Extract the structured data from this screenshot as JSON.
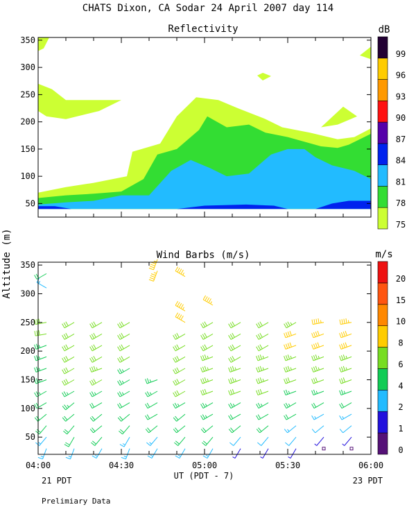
{
  "title": "CHATS Dixon, CA  Sodar  24 April 2007  day 114",
  "y_axis_label": "Altitude (m)",
  "x_axis_label": "UT  (PDT - 7)",
  "left_footer": "21 PDT",
  "right_footer": "23 PDT",
  "footnote": "Prelimiary Data",
  "x_ticks": [
    "04:00",
    "04:30",
    "05:00",
    "05:30",
    "06:00"
  ],
  "y_ticks": [
    "50",
    "100",
    "150",
    "200",
    "250",
    "300",
    "350"
  ],
  "chart_data": [
    {
      "type": "heatmap",
      "title": "Reflectivity",
      "xlim": [
        "04:00",
        "06:00"
      ],
      "ylim": [
        25,
        355
      ],
      "colorbar": {
        "unit": "dB",
        "levels": [
          "75",
          "78",
          "81",
          "84",
          "87",
          "90",
          "93",
          "96",
          "99"
        ],
        "colors": [
          "#ccff33",
          "#33dd33",
          "#22bbff",
          "#0022ee",
          "#5500aa",
          "#ff1111",
          "#ff9900",
          "#ffcc00",
          "#220033"
        ]
      },
      "contours": [
        {
          "level": "75",
          "color": "#ccff33",
          "points": [
            [
              "04:00",
              70
            ],
            [
              "04:10",
              80
            ],
            [
              "04:20",
              88
            ],
            [
              "04:32",
              100
            ],
            [
              "04:34",
              145
            ],
            [
              "04:44",
              160
            ],
            [
              "04:50",
              210
            ],
            [
              "04:57",
              245
            ],
            [
              "05:05",
              240
            ],
            [
              "05:12",
              225
            ],
            [
              "05:22",
              205
            ],
            [
              "05:28",
              190
            ],
            [
              "05:38",
              180
            ],
            [
              "05:48",
              168
            ],
            [
              "05:54",
              172
            ],
            [
              "06:00",
              188
            ],
            [
              "06:00",
              40
            ],
            [
              "04:00",
              40
            ]
          ]
        },
        {
          "level": "75",
          "color": "#ccff33",
          "points": [
            [
              "04:00",
              270
            ],
            [
              "04:05",
              260
            ],
            [
              "04:10",
              240
            ],
            [
              "04:20",
              240
            ],
            [
              "04:30",
              240
            ],
            [
              "04:22",
              220
            ],
            [
              "04:10",
              205
            ],
            [
              "04:03",
              210
            ],
            [
              "04:00",
              220
            ]
          ]
        },
        {
          "level": "75",
          "color": "#ccff33",
          "points": [
            [
              "04:00",
              330
            ],
            [
              "04:00",
              355
            ],
            [
              "04:04",
              355
            ],
            [
              "04:02",
              335
            ]
          ]
        },
        {
          "level": "75",
          "color": "#ccff33",
          "points": [
            [
              "05:42",
              190
            ],
            [
              "05:50",
              228
            ],
            [
              "05:55",
              210
            ],
            [
              "05:48",
              195
            ]
          ]
        },
        {
          "level": "75",
          "color": "#ccff33",
          "points": [
            [
              "05:19",
              285
            ],
            [
              "05:21",
              290
            ],
            [
              "05:24",
              284
            ],
            [
              "05:21",
              276
            ]
          ]
        },
        {
          "level": "75",
          "color": "#ccff33",
          "points": [
            [
              "05:58",
              330
            ],
            [
              "06:00",
              338
            ],
            [
              "06:00",
              315
            ],
            [
              "05:56",
              322
            ]
          ]
        },
        {
          "level": "78",
          "color": "#33dd33",
          "points": [
            [
              "04:00",
              60
            ],
            [
              "04:10",
              65
            ],
            [
              "04:20",
              68
            ],
            [
              "04:30",
              72
            ],
            [
              "04:38",
              95
            ],
            [
              "04:43",
              140
            ],
            [
              "04:50",
              150
            ],
            [
              "04:58",
              185
            ],
            [
              "05:01",
              210
            ],
            [
              "05:08",
              190
            ],
            [
              "05:16",
              195
            ],
            [
              "05:22",
              180
            ],
            [
              "05:30",
              172
            ],
            [
              "05:42",
              155
            ],
            [
              "05:48",
              152
            ],
            [
              "05:52",
              158
            ],
            [
              "06:00",
              178
            ],
            [
              "06:00",
              40
            ],
            [
              "04:00",
              40
            ]
          ]
        },
        {
          "level": "81",
          "color": "#22bbff",
          "points": [
            [
              "04:00",
              48
            ],
            [
              "04:10",
              52
            ],
            [
              "04:20",
              55
            ],
            [
              "04:30",
              65
            ],
            [
              "04:40",
              65
            ],
            [
              "04:48",
              110
            ],
            [
              "04:55",
              130
            ],
            [
              "05:02",
              115
            ],
            [
              "05:08",
              100
            ],
            [
              "05:16",
              105
            ],
            [
              "05:24",
              140
            ],
            [
              "05:30",
              150
            ],
            [
              "05:36",
              150
            ],
            [
              "05:40",
              135
            ],
            [
              "05:46",
              120
            ],
            [
              "05:54",
              110
            ],
            [
              "06:00",
              95
            ],
            [
              "06:00",
              40
            ],
            [
              "04:00",
              40
            ]
          ]
        },
        {
          "level": "84",
          "color": "#0022ee",
          "points": [
            [
              "04:00",
              40
            ],
            [
              "04:00",
              45
            ],
            [
              "04:06",
              45
            ],
            [
              "04:12",
              40
            ]
          ]
        },
        {
          "level": "84",
          "color": "#0022ee",
          "points": [
            [
              "04:50",
              40
            ],
            [
              "05:00",
              46
            ],
            [
              "05:15",
              48
            ],
            [
              "05:25",
              46
            ],
            [
              "05:30",
              40
            ]
          ]
        },
        {
          "level": "84",
          "color": "#0022ee",
          "points": [
            [
              "05:40",
              40
            ],
            [
              "05:46",
              50
            ],
            [
              "05:52",
              55
            ],
            [
              "06:00",
              55
            ],
            [
              "06:00",
              40
            ]
          ]
        }
      ]
    },
    {
      "type": "scatter",
      "title": "Wind Barbs (m/s)",
      "xlim": [
        "04:00",
        "06:00"
      ],
      "ylim": [
        20,
        355
      ],
      "colorbar": {
        "unit": "m/s",
        "levels": [
          "0",
          "1",
          "2",
          "4",
          "6",
          "8",
          "10",
          "15",
          "20"
        ],
        "colors": [
          "#551177",
          "#2211dd",
          "#22bbff",
          "#11cc55",
          "#77dd22",
          "#ffcc00",
          "#ff8800",
          "#ff5511",
          "#ee1111"
        ]
      },
      "times": [
        "04:03",
        "04:13",
        "04:23",
        "04:33",
        "04:43",
        "04:53",
        "05:03",
        "05:13",
        "05:23",
        "05:33",
        "05:43",
        "05:53"
      ],
      "heights": [
        30,
        50,
        70,
        90,
        110,
        130,
        150,
        170,
        190,
        210,
        230,
        250
      ],
      "barbs": [
        {
          "time": "04:03",
          "heights": [
            30,
            50,
            70,
            90,
            110,
            130,
            150,
            170,
            190,
            210,
            230,
            250,
            310,
            335
          ],
          "speeds": [
            3,
            3,
            4,
            4,
            4,
            5,
            5,
            5,
            5,
            5,
            6,
            6,
            3,
            4
          ],
          "directions": [
            200,
            220,
            220,
            230,
            240,
            240,
            250,
            250,
            250,
            250,
            260,
            260,
            300,
            240
          ]
        },
        {
          "time": "04:13",
          "heights": [
            30,
            50,
            70,
            90,
            110,
            130,
            150,
            170,
            190,
            210,
            230,
            250
          ],
          "speeds": [
            3,
            4,
            4,
            4,
            5,
            5,
            6,
            6,
            6,
            6,
            6,
            6
          ],
          "directions": [
            200,
            210,
            220,
            230,
            230,
            240,
            240,
            240,
            240,
            240,
            240,
            240
          ]
        },
        {
          "time": "04:23",
          "heights": [
            30,
            50,
            70,
            90,
            110,
            130,
            150,
            170,
            190,
            210,
            230,
            250
          ],
          "speeds": [
            3,
            4,
            4,
            4,
            4,
            5,
            6,
            7,
            6,
            6,
            6,
            6
          ],
          "directions": [
            210,
            220,
            230,
            230,
            240,
            240,
            240,
            250,
            240,
            240,
            240,
            240
          ]
        },
        {
          "time": "04:33",
          "heights": [
            30,
            50,
            70,
            90,
            110,
            130,
            150,
            170,
            190,
            210,
            230,
            250
          ],
          "speeds": [
            3,
            3,
            4,
            4,
            4,
            5,
            5,
            5,
            6,
            6,
            6,
            6
          ],
          "directions": [
            200,
            210,
            220,
            230,
            240,
            240,
            240,
            240,
            240,
            240,
            240,
            240
          ]
        },
        {
          "time": "04:43",
          "heights": [
            30,
            50,
            70,
            90,
            110,
            130,
            150,
            340,
            360
          ],
          "speeds": [
            3,
            3,
            4,
            4,
            4,
            5,
            5,
            9,
            9
          ],
          "directions": [
            210,
            220,
            230,
            240,
            240,
            240,
            250,
            200,
            200
          ]
        },
        {
          "time": "04:53",
          "heights": [
            30,
            50,
            70,
            90,
            110,
            130,
            150,
            170,
            190,
            210,
            230,
            250,
            270,
            330
          ],
          "speeds": [
            3,
            4,
            4,
            4,
            5,
            6,
            6,
            6,
            6,
            6,
            6,
            8,
            9,
            9
          ],
          "directions": [
            210,
            220,
            230,
            230,
            240,
            240,
            240,
            240,
            240,
            240,
            240,
            300,
            300,
            300
          ]
        },
        {
          "time": "05:03",
          "heights": [
            30,
            50,
            70,
            90,
            110,
            130,
            150,
            170,
            190,
            210,
            230,
            250,
            280
          ],
          "speeds": [
            3,
            4,
            4,
            5,
            5,
            6,
            7,
            7,
            7,
            6,
            6,
            6,
            9
          ],
          "directions": [
            210,
            220,
            230,
            240,
            240,
            250,
            250,
            250,
            250,
            240,
            240,
            240,
            300
          ]
        },
        {
          "time": "05:13",
          "heights": [
            30,
            50,
            70,
            90,
            110,
            130,
            150,
            170,
            190,
            210,
            230,
            250
          ],
          "speeds": [
            1,
            2,
            4,
            4,
            5,
            6,
            7,
            7,
            6,
            6,
            6,
            6
          ],
          "directions": [
            210,
            220,
            230,
            240,
            240,
            250,
            250,
            250,
            240,
            240,
            240,
            240
          ]
        },
        {
          "time": "05:23",
          "heights": [
            30,
            50,
            70,
            90,
            110,
            130,
            150,
            170,
            190,
            210,
            230,
            250
          ],
          "speeds": [
            1,
            2,
            4,
            4,
            5,
            6,
            7,
            7,
            7,
            6,
            6,
            6
          ],
          "directions": [
            210,
            220,
            230,
            240,
            240,
            250,
            250,
            250,
            250,
            240,
            240,
            240
          ]
        },
        {
          "time": "05:33",
          "heights": [
            30,
            50,
            70,
            90,
            110,
            130,
            150,
            170,
            190,
            210,
            230,
            250
          ],
          "speeds": [
            1,
            2,
            3,
            4,
            5,
            5,
            6,
            7,
            7,
            8,
            8,
            7
          ],
          "directions": [
            210,
            220,
            230,
            240,
            240,
            250,
            250,
            250,
            250,
            250,
            250,
            240
          ]
        },
        {
          "time": "05:43",
          "heights": [
            30,
            50,
            70,
            90,
            110,
            130,
            150,
            170,
            190,
            210,
            230,
            250
          ],
          "speeds": [
            0,
            1,
            2,
            3,
            4,
            5,
            6,
            7,
            7,
            8,
            8,
            9
          ],
          "directions": [
            210,
            220,
            230,
            240,
            240,
            250,
            250,
            250,
            250,
            250,
            250,
            260
          ]
        },
        {
          "time": "05:53",
          "heights": [
            30,
            50,
            70,
            90,
            110,
            130,
            150,
            170,
            190,
            210,
            230,
            250
          ],
          "speeds": [
            0,
            1,
            2,
            3,
            4,
            5,
            6,
            7,
            7,
            8,
            8,
            9
          ],
          "directions": [
            210,
            220,
            230,
            240,
            240,
            250,
            250,
            250,
            250,
            250,
            250,
            260
          ]
        }
      ]
    }
  ]
}
